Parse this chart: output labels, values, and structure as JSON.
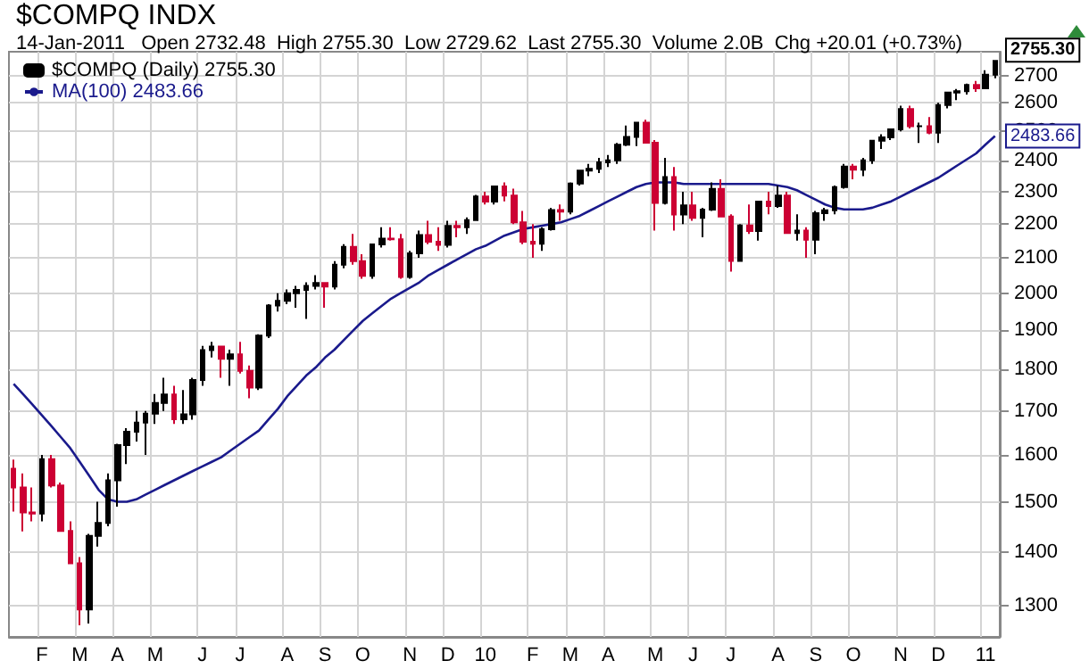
{
  "chart_data": {
    "type": "candlestick",
    "title": "$COMPQ INDX",
    "subtitle": "14-Jan-2011   Open 2732.48  High 2755.30  Low 2729.62  Last 2755.30  Volume 2.0B  Chg +20.01 (+0.73%)",
    "categories": [
      null,
      null,
      null,
      "F",
      null,
      null,
      null,
      "M",
      null,
      null,
      null,
      "A",
      null,
      null,
      null,
      "M",
      null,
      null,
      null,
      null,
      "J",
      null,
      null,
      null,
      "J",
      null,
      null,
      null,
      null,
      "A",
      null,
      null,
      null,
      "S",
      null,
      null,
      null,
      "O",
      null,
      null,
      null,
      null,
      "N",
      null,
      null,
      null,
      "D",
      null,
      null,
      null,
      "10",
      null,
      null,
      null,
      null,
      "F",
      null,
      null,
      null,
      "M",
      null,
      null,
      null,
      "A",
      null,
      null,
      null,
      null,
      "M",
      null,
      null,
      null,
      "J",
      null,
      null,
      null,
      "J",
      null,
      null,
      null,
      null,
      "A",
      null,
      null,
      null,
      "S",
      null,
      null,
      null,
      "O",
      null,
      null,
      null,
      null,
      "N",
      null,
      null,
      null,
      "D",
      null,
      null,
      null,
      null,
      "11",
      null
    ],
    "series": [
      {
        "name": "$COMPQ (Daily) 2755.30",
        "color": "#000000",
        "colors": [
          "#cc0033",
          "#cc0033",
          "#cc0033",
          "#000000",
          "#cc0033",
          "#cc0033",
          "#cc0033",
          "#cc0033",
          "#000000",
          "#000000",
          "#000000",
          "#000000",
          "#000000",
          "#000000",
          "#000000",
          "#000000",
          "#000000",
          "#cc0033",
          "#000000",
          "#000000",
          "#000000",
          "#000000",
          "#cc0033",
          "#000000",
          "#cc0033",
          "#cc0033",
          "#000000",
          "#000000",
          "#000000",
          "#000000",
          "#000000",
          "#000000",
          "#000000",
          "#cc0033",
          "#000000",
          "#000000",
          "#cc0033",
          "#cc0033",
          "#000000",
          "#000000",
          "#cc0033",
          "#cc0033",
          "#000000",
          "#000000",
          "#cc0033",
          "#cc0033",
          "#000000",
          "#cc0033",
          "#000000",
          "#000000",
          "#cc0033",
          "#000000",
          "#cc0033",
          "#cc0033",
          "#cc0033",
          "#cc0033",
          "#000000",
          "#000000",
          "#cc0033",
          "#000000",
          "#000000",
          "#000000",
          "#000000",
          "#000000",
          "#000000",
          "#000000",
          "#000000",
          "#cc0033",
          "#cc0033",
          "#000000",
          "#cc0033",
          "#000000",
          "#cc0033",
          "#000000",
          "#000000",
          "#cc0033",
          "#cc0033",
          "#000000",
          "#cc0033",
          "#000000",
          "#cc0033",
          "#000000",
          "#cc0033",
          "#000000",
          "#cc0033",
          "#000000",
          "#000000",
          "#000000",
          "#000000",
          "#cc0033",
          "#000000",
          "#000000",
          "#000000",
          "#000000",
          "#000000",
          "#cc0033",
          "#000000",
          "#cc0033",
          "#000000",
          "#000000",
          "#000000",
          "#000000",
          "#cc0033",
          "#000000",
          "#000000"
        ],
        "ohlc": [
          [
            1570,
            1590,
            1480,
            1530
          ],
          [
            1530,
            1560,
            1440,
            1478
          ],
          [
            1478,
            1530,
            1460,
            1476
          ],
          [
            1476,
            1600,
            1460,
            1591
          ],
          [
            1591,
            1600,
            1530,
            1534
          ],
          [
            1534,
            1540,
            1440,
            1441
          ],
          [
            1441,
            1460,
            1377,
            1378
          ],
          [
            1378,
            1390,
            1265,
            1293
          ],
          [
            1293,
            1435,
            1268,
            1431
          ],
          [
            1431,
            1500,
            1410,
            1457
          ],
          [
            1457,
            1560,
            1450,
            1545
          ],
          [
            1545,
            1625,
            1490,
            1622
          ],
          [
            1622,
            1660,
            1580,
            1652
          ],
          [
            1652,
            1700,
            1630,
            1673
          ],
          [
            1673,
            1700,
            1600,
            1694
          ],
          [
            1694,
            1740,
            1670,
            1719
          ],
          [
            1719,
            1780,
            1700,
            1739
          ],
          [
            1739,
            1760,
            1670,
            1681
          ],
          [
            1681,
            1750,
            1670,
            1692
          ],
          [
            1692,
            1780,
            1680,
            1774
          ],
          [
            1774,
            1860,
            1760,
            1849
          ],
          [
            1849,
            1870,
            1830,
            1858
          ],
          [
            1858,
            1860,
            1780,
            1827
          ],
          [
            1827,
            1850,
            1760,
            1838
          ],
          [
            1838,
            1870,
            1790,
            1797
          ],
          [
            1797,
            1810,
            1730,
            1756
          ],
          [
            1756,
            1890,
            1750,
            1886
          ],
          [
            1886,
            1970,
            1880,
            1966
          ],
          [
            1966,
            2000,
            1950,
            1979
          ],
          [
            1979,
            2010,
            1970,
            2000
          ],
          [
            2000,
            2020,
            1960,
            2009
          ],
          [
            2009,
            2030,
            1930,
            2020
          ],
          [
            2020,
            2050,
            2010,
            2028
          ],
          [
            2028,
            2030,
            1960,
            2018
          ],
          [
            2018,
            2090,
            2010,
            2080
          ],
          [
            2080,
            2140,
            2070,
            2132
          ],
          [
            2132,
            2170,
            2080,
            2090
          ],
          [
            2090,
            2110,
            2040,
            2048
          ],
          [
            2048,
            2140,
            2040,
            2139
          ],
          [
            2139,
            2190,
            2130,
            2156
          ],
          [
            2156,
            2190,
            2150,
            2154
          ],
          [
            2154,
            2170,
            2040,
            2045
          ],
          [
            2045,
            2120,
            2040,
            2113
          ],
          [
            2113,
            2180,
            2100,
            2167
          ],
          [
            2167,
            2210,
            2140,
            2147
          ],
          [
            2147,
            2190,
            2120,
            2138
          ],
          [
            2138,
            2210,
            2130,
            2194
          ],
          [
            2194,
            2210,
            2160,
            2190
          ],
          [
            2190,
            2220,
            2170,
            2212
          ],
          [
            2212,
            2290,
            2210,
            2285
          ],
          [
            2285,
            2300,
            2260,
            2269
          ],
          [
            2269,
            2320,
            2260,
            2317
          ],
          [
            2317,
            2330,
            2270,
            2288
          ],
          [
            2288,
            2310,
            2200,
            2205
          ],
          [
            2205,
            2240,
            2140,
            2147
          ],
          [
            2147,
            2200,
            2100,
            2141
          ],
          [
            2141,
            2190,
            2120,
            2184
          ],
          [
            2184,
            2250,
            2180,
            2243
          ],
          [
            2243,
            2260,
            2210,
            2238
          ],
          [
            2238,
            2330,
            2230,
            2326
          ],
          [
            2326,
            2370,
            2320,
            2368
          ],
          [
            2368,
            2390,
            2350,
            2374
          ],
          [
            2374,
            2410,
            2360,
            2395
          ],
          [
            2395,
            2420,
            2380,
            2402
          ],
          [
            2402,
            2460,
            2390,
            2454
          ],
          [
            2454,
            2520,
            2450,
            2481
          ],
          [
            2481,
            2530,
            2450,
            2530
          ],
          [
            2530,
            2540,
            2460,
            2461
          ],
          [
            2461,
            2470,
            2180,
            2265
          ],
          [
            2265,
            2410,
            2260,
            2347
          ],
          [
            2347,
            2380,
            2180,
            2229
          ],
          [
            2229,
            2300,
            2200,
            2257
          ],
          [
            2257,
            2300,
            2210,
            2219
          ],
          [
            2219,
            2250,
            2160,
            2244
          ],
          [
            2244,
            2330,
            2240,
            2309
          ],
          [
            2309,
            2340,
            2220,
            2223
          ],
          [
            2223,
            2230,
            2060,
            2091
          ],
          [
            2091,
            2200,
            2090,
            2196
          ],
          [
            2196,
            2260,
            2170,
            2179
          ],
          [
            2179,
            2270,
            2150,
            2269
          ],
          [
            2269,
            2300,
            2230,
            2255
          ],
          [
            2255,
            2320,
            2250,
            2288
          ],
          [
            2288,
            2300,
            2170,
            2173
          ],
          [
            2173,
            2230,
            2150,
            2180
          ],
          [
            2180,
            2190,
            2100,
            2153
          ],
          [
            2153,
            2240,
            2110,
            2233
          ],
          [
            2233,
            2250,
            2210,
            2242
          ],
          [
            2242,
            2320,
            2230,
            2315
          ],
          [
            2315,
            2390,
            2310,
            2381
          ],
          [
            2381,
            2390,
            2340,
            2371
          ],
          [
            2371,
            2410,
            2350,
            2402
          ],
          [
            2402,
            2470,
            2390,
            2468
          ],
          [
            2468,
            2490,
            2440,
            2479
          ],
          [
            2479,
            2510,
            2470,
            2507
          ],
          [
            2507,
            2590,
            2500,
            2578
          ],
          [
            2578,
            2590,
            2510,
            2518
          ],
          [
            2518,
            2530,
            2460,
            2518
          ],
          [
            2518,
            2550,
            2490,
            2495
          ],
          [
            2495,
            2600,
            2460,
            2592
          ],
          [
            2592,
            2640,
            2580,
            2637
          ],
          [
            2637,
            2650,
            2610,
            2642
          ],
          [
            2642,
            2670,
            2630,
            2665
          ],
          [
            2665,
            2680,
            2640,
            2653
          ],
          [
            2653,
            2720,
            2650,
            2703
          ],
          [
            2703,
            2755.3,
            2690,
            2755.3
          ]
        ]
      },
      {
        "type": "line",
        "name": "MA(100) 2483.66",
        "color": "#1a1a8c",
        "values": [
          1765,
          1740,
          1715,
          1690,
          1665,
          1640,
          1615,
          1585,
          1555,
          1525,
          1505,
          1500,
          1500,
          1505,
          1515,
          1525,
          1535,
          1545,
          1555,
          1565,
          1575,
          1585,
          1595,
          1610,
          1625,
          1640,
          1655,
          1680,
          1705,
          1735,
          1760,
          1785,
          1805,
          1830,
          1850,
          1875,
          1900,
          1925,
          1945,
          1965,
          1985,
          2000,
          2015,
          2030,
          2050,
          2065,
          2080,
          2095,
          2110,
          2125,
          2135,
          2150,
          2165,
          2175,
          2185,
          2190,
          2195,
          2200,
          2205,
          2215,
          2225,
          2240,
          2255,
          2270,
          2285,
          2300,
          2315,
          2325,
          2330,
          2330,
          2330,
          2325,
          2325,
          2325,
          2325,
          2325,
          2325,
          2325,
          2325,
          2325,
          2325,
          2320,
          2315,
          2305,
          2290,
          2275,
          2260,
          2250,
          2245,
          2245,
          2245,
          2250,
          2260,
          2270,
          2285,
          2300,
          2315,
          2330,
          2345,
          2365,
          2385,
          2405,
          2425,
          2455,
          2483.66
        ]
      }
    ],
    "ylim": [
      1245,
      2790
    ],
    "yticks": [
      1300,
      1400,
      1500,
      1600,
      1700,
      1800,
      1900,
      2000,
      2100,
      2200,
      2300,
      2400,
      2500,
      2600,
      2700
    ],
    "log": true,
    "grid": true,
    "legend": "top left",
    "annotations": [
      "2755.30",
      "2483.66"
    ]
  }
}
